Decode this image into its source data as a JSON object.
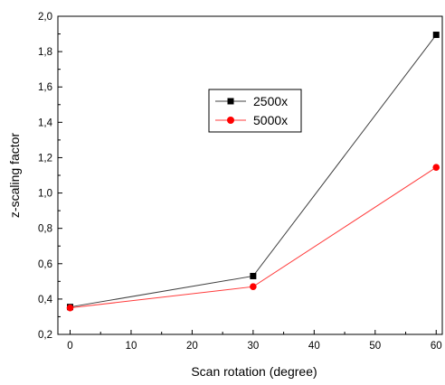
{
  "chart_data": {
    "type": "line",
    "xlabel": "Scan rotation (degree)",
    "ylabel": "z-scaling factor",
    "xlim": [
      -2,
      61
    ],
    "ylim": [
      0.2,
      2.0
    ],
    "x_ticks": [
      0,
      10,
      20,
      30,
      40,
      50,
      60
    ],
    "y_ticks": [
      0.2,
      0.4,
      0.6,
      0.8,
      1.0,
      1.2,
      1.4,
      1.6,
      1.8,
      2.0
    ],
    "x_tick_labels": [
      "0",
      "10",
      "20",
      "30",
      "40",
      "50",
      "60"
    ],
    "y_tick_labels": [
      "0,2",
      "0,4",
      "0,6",
      "0,8",
      "1,0",
      "1,2",
      "1,4",
      "1,6",
      "1,8",
      "2,0"
    ],
    "grid": false,
    "legend_position": "upper-center",
    "x": [
      0,
      30,
      60
    ],
    "series": [
      {
        "name": "2500x",
        "values": [
          0.355,
          0.53,
          1.895
        ],
        "color": "#404040",
        "marker": "square",
        "marker_color": "#000000"
      },
      {
        "name": "5000x",
        "values": [
          0.35,
          0.47,
          1.145
        ],
        "color": "#ff3b3b",
        "marker": "circle",
        "marker_color": "#ff0000"
      }
    ]
  }
}
